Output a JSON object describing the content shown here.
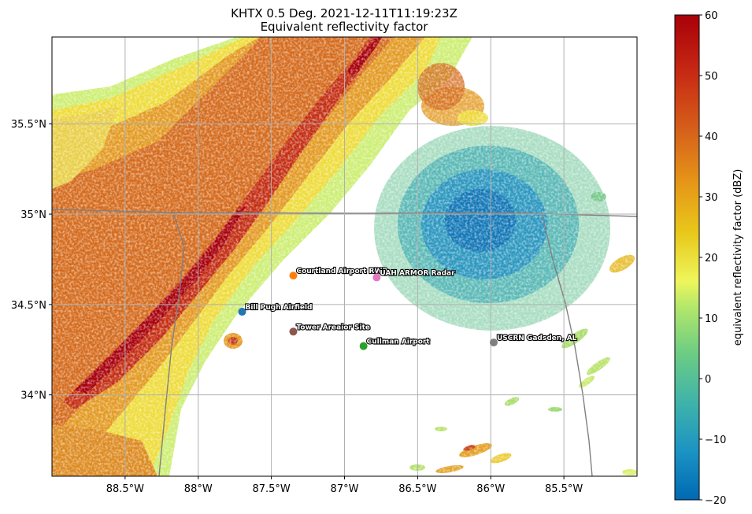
{
  "title": {
    "line1": "KHTX 0.5 Deg. 2021-12-11T11:19:23Z",
    "line2": "Equivalent reflectivity factor"
  },
  "map": {
    "lon_range": [
      -89.0,
      -85.0
    ],
    "lat_range": [
      33.55,
      35.98
    ],
    "lon_ticks": [
      {
        "value": -88.5,
        "label": "88.5°W"
      },
      {
        "value": -88.0,
        "label": "88°W"
      },
      {
        "value": -87.5,
        "label": "87.5°W"
      },
      {
        "value": -87.0,
        "label": "87°W"
      },
      {
        "value": -86.5,
        "label": "86.5°W"
      },
      {
        "value": -86.0,
        "label": "86°W"
      },
      {
        "value": -85.5,
        "label": "85.5°W"
      }
    ],
    "lat_ticks": [
      {
        "value": 34.0,
        "label": "34°N"
      },
      {
        "value": 34.5,
        "label": "34.5°N"
      },
      {
        "value": 35.0,
        "label": "35°N"
      },
      {
        "value": 35.5,
        "label": "35.5°N"
      }
    ],
    "grid": true,
    "colors": {
      "grid": "#b0b0b0",
      "borders": "#808080",
      "frame": "#000000"
    }
  },
  "stations": [
    {
      "name": "Courtland Airport RWP",
      "lon": -87.35,
      "lat": 34.66,
      "color": "#ff7f0e"
    },
    {
      "name": "UAH ARMOR Radar",
      "lon": -86.78,
      "lat": 34.65,
      "color": "#e377c2"
    },
    {
      "name": "Bill Pugh Airfield",
      "lon": -87.7,
      "lat": 34.46,
      "color": "#1f77b4"
    },
    {
      "name": "Tower Areaior Site",
      "lon": -87.35,
      "lat": 34.35,
      "color": "#8c564b"
    },
    {
      "name": "Cullman Airport",
      "lon": -86.87,
      "lat": 34.27,
      "color": "#2ca02c"
    },
    {
      "name": "USCRN Gadsden, AL",
      "lon": -85.98,
      "lat": 34.29,
      "color": "#7f7f7f"
    }
  ],
  "colorbar": {
    "label": "equivalent reflectivity factor (dBZ)",
    "range": [
      -20,
      60
    ],
    "ticks": [
      {
        "value": 60,
        "label": "60"
      },
      {
        "value": 50,
        "label": "50"
      },
      {
        "value": 40,
        "label": "40"
      },
      {
        "value": 30,
        "label": "30"
      },
      {
        "value": 20,
        "label": "20"
      },
      {
        "value": 10,
        "label": "10"
      },
      {
        "value": 0,
        "label": "0"
      },
      {
        "value": -10,
        "label": "−10"
      },
      {
        "value": -20,
        "label": "−20"
      }
    ],
    "colormap": [
      "#0069b3",
      "#1b93c3",
      "#3fb3aa",
      "#6bcc84",
      "#b5e86a",
      "#eef65c",
      "#e8c81a",
      "#e69818",
      "#d8661a",
      "#c72a14",
      "#a80008"
    ]
  }
}
